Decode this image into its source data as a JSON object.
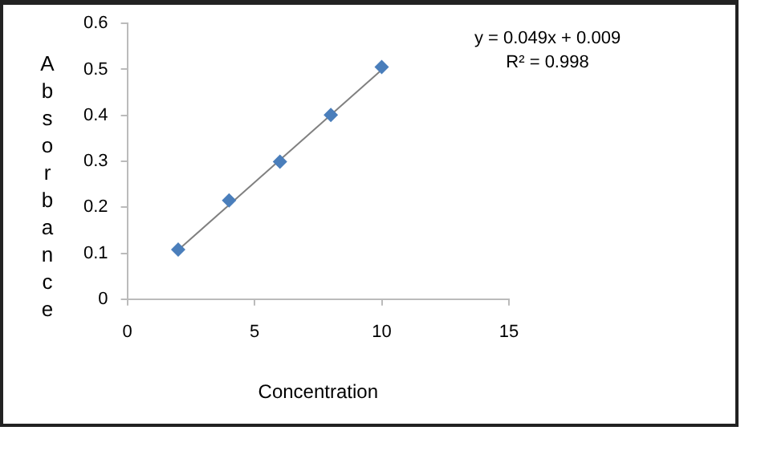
{
  "chart_data": {
    "type": "scatter",
    "xlabel": "Concentration",
    "ylabel": "Absorbance",
    "annotations": [
      "y = 0.049x + 0.009",
      "R² = 0.998"
    ],
    "x": [
      2,
      4,
      6,
      8,
      10
    ],
    "series": [
      {
        "color": "#4a7ebb",
        "values": [
          0.108,
          0.215,
          0.299,
          0.401,
          0.505
        ],
        "marker": "diamond"
      },
      {
        "type": "line",
        "color": "#808080",
        "x": [
          2,
          10
        ],
        "values": [
          0.107,
          0.499
        ],
        "marker": "none"
      }
    ],
    "xlim": [
      0,
      15
    ],
    "xticks": [
      0,
      5,
      10,
      15
    ],
    "ylim": [
      0,
      0.6
    ],
    "yticks": [
      0,
      0.1,
      0.2,
      0.3,
      0.4,
      0.5,
      0.6
    ],
    "grid": false,
    "legend": false
  }
}
